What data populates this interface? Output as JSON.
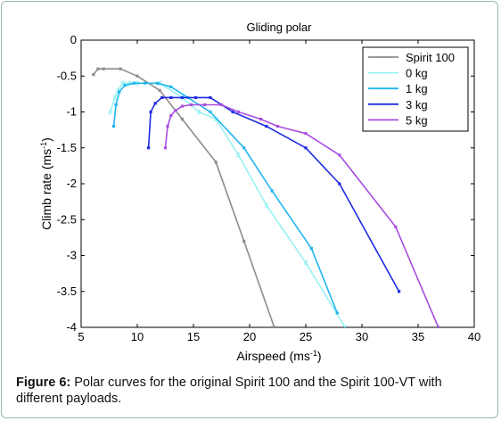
{
  "chart_data": {
    "type": "line",
    "title": "Gliding polar",
    "xlabel": "Airspeed (ms",
    "xlabel_sup": "-1",
    "xlabel_end": ")",
    "ylabel": "Climb rate (ms",
    "ylabel_sup": "-1",
    "ylabel_end": ")",
    "xlim": [
      5,
      40
    ],
    "ylim": [
      -4,
      0
    ],
    "xticks": [
      5,
      10,
      15,
      20,
      25,
      30,
      35,
      40
    ],
    "yticks": [
      0,
      -0.5,
      -1,
      -1.5,
      -2,
      -2.5,
      -3,
      -3.5,
      -4
    ],
    "grid": false,
    "legend_position": "top-right",
    "series": [
      {
        "name": "Spirit 100",
        "color": "#8c8c8c",
        "marker": "dot",
        "x": [
          6.1,
          6.5,
          7.0,
          8.5,
          10.0,
          12.0,
          14.0,
          17.0,
          19.5,
          22.2
        ],
        "y": [
          -0.48,
          -0.4,
          -0.4,
          -0.4,
          -0.5,
          -0.7,
          -1.1,
          -1.7,
          -2.8,
          -4.0
        ]
      },
      {
        "name": "0 kg",
        "color": "#99f2f2",
        "marker": "star",
        "x": [
          7.6,
          8.0,
          8.3,
          8.7,
          9.3,
          10.0,
          12.0,
          14.0,
          15.5,
          17.0,
          19.0,
          21.5,
          25.0,
          28.5
        ],
        "y": [
          -1.0,
          -0.8,
          -0.7,
          -0.6,
          -0.6,
          -0.6,
          -0.6,
          -0.8,
          -1.0,
          -1.1,
          -1.6,
          -2.3,
          -3.1,
          -4.0
        ]
      },
      {
        "name": "1 kg",
        "color": "#22b5ee",
        "marker": "dot",
        "x": [
          7.9,
          8.1,
          8.4,
          8.9,
          9.7,
          10.7,
          11.8,
          13.0,
          14.5,
          16.5,
          19.5,
          22.0,
          25.5,
          27.8
        ],
        "y": [
          -1.2,
          -0.9,
          -0.72,
          -0.63,
          -0.6,
          -0.6,
          -0.6,
          -0.65,
          -0.8,
          -1.0,
          -1.5,
          -2.1,
          -2.9,
          -3.8
        ]
      },
      {
        "name": "3 kg",
        "color": "#1d2be0",
        "marker": "dot",
        "x": [
          11.0,
          11.2,
          11.6,
          12.2,
          13.0,
          14.0,
          15.2,
          16.5,
          18.5,
          21.5,
          25.0,
          28.0,
          33.3
        ],
        "y": [
          -1.5,
          -1.0,
          -0.88,
          -0.8,
          -0.8,
          -0.8,
          -0.8,
          -0.8,
          -1.0,
          -1.2,
          -1.5,
          -2.0,
          -3.5
        ]
      },
      {
        "name": "5 kg",
        "color": "#a84ee0",
        "marker": "dot",
        "x": [
          12.5,
          12.7,
          13.0,
          13.4,
          14.0,
          14.8,
          16.0,
          17.5,
          19.0,
          21.0,
          22.5,
          25.0,
          28.0,
          33.0,
          36.8
        ],
        "y": [
          -1.5,
          -1.2,
          -1.05,
          -0.98,
          -0.92,
          -0.9,
          -0.9,
          -0.9,
          -1.0,
          -1.1,
          -1.2,
          -1.3,
          -1.6,
          -2.6,
          -4.0
        ]
      }
    ]
  },
  "caption": {
    "label": "Figure 6:",
    "text": " Polar curves for the original Spirit 100 and the Spirit 100-VT with different payloads."
  }
}
